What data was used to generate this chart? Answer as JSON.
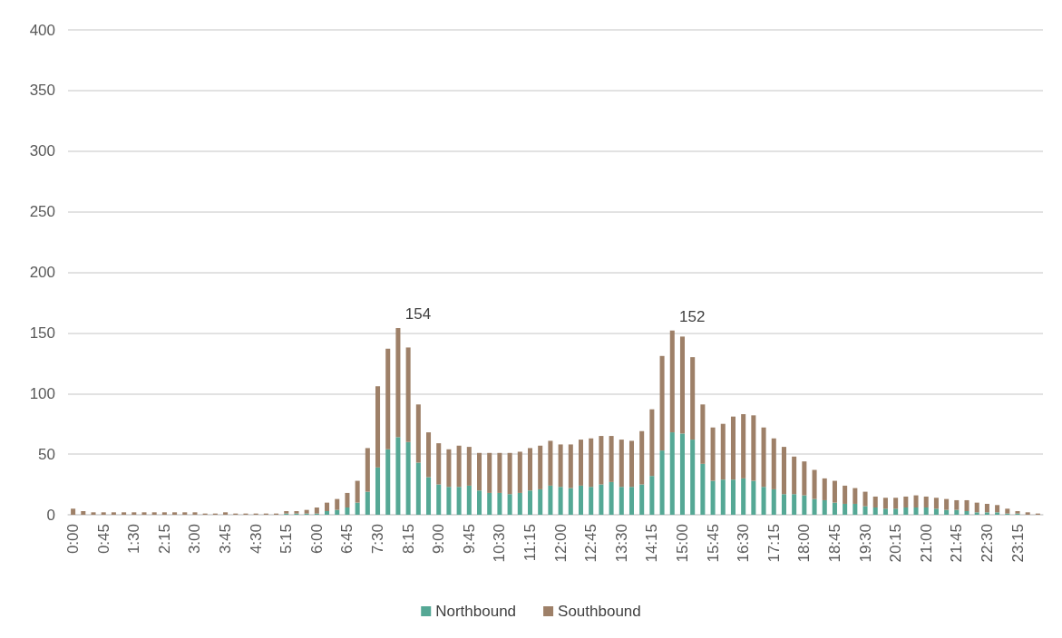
{
  "chart_data": {
    "type": "bar",
    "stacked": true,
    "categories": [
      "0:00",
      null,
      null,
      "0:45",
      null,
      null,
      "1:30",
      null,
      null,
      "2:15",
      null,
      null,
      "3:00",
      null,
      null,
      "3:45",
      null,
      null,
      "4:30",
      null,
      null,
      "5:15",
      null,
      null,
      "6:00",
      null,
      null,
      "6:45",
      null,
      null,
      "7:30",
      null,
      null,
      "8:15",
      null,
      null,
      "9:00",
      null,
      null,
      "9:45",
      null,
      null,
      "10:30",
      null,
      null,
      "11:15",
      null,
      null,
      "12:00",
      null,
      null,
      "12:45",
      null,
      null,
      "13:30",
      null,
      null,
      "14:15",
      null,
      null,
      "15:00",
      null,
      null,
      "15:45",
      null,
      null,
      "16:30",
      null,
      null,
      "17:15",
      null,
      null,
      "18:00",
      null,
      null,
      "18:45",
      null,
      null,
      "19:30",
      null,
      null,
      "20:15",
      null,
      null,
      "21:00",
      null,
      null,
      "21:45",
      null,
      null,
      "22:30",
      null,
      null,
      "23:15",
      null,
      null
    ],
    "series": [
      {
        "name": "Northbound",
        "color": "#55a895",
        "values": [
          0,
          0,
          0,
          0,
          0,
          0,
          0,
          0,
          0,
          0,
          0,
          0,
          0,
          0,
          0,
          0,
          0,
          0,
          0,
          0,
          0,
          1,
          1,
          1,
          1,
          3,
          4,
          6,
          10,
          19,
          39,
          54,
          64,
          60,
          43,
          31,
          25,
          23,
          23,
          24,
          20,
          18,
          18,
          17,
          18,
          20,
          21,
          24,
          23,
          22,
          24,
          23,
          25,
          27,
          23,
          23,
          25,
          32,
          53,
          68,
          67,
          62,
          42,
          28,
          29,
          29,
          30,
          28,
          23,
          21,
          17,
          17,
          16,
          13,
          12,
          10,
          9,
          9,
          7,
          6,
          5,
          5,
          6,
          6,
          6,
          5,
          4,
          4,
          3,
          2,
          2,
          2,
          1,
          1,
          0,
          0
        ]
      },
      {
        "name": "Southbound",
        "color": "#9e8068",
        "values": [
          5,
          3,
          2,
          2,
          2,
          2,
          2,
          2,
          2,
          2,
          2,
          2,
          2,
          1,
          1,
          2,
          1,
          1,
          1,
          1,
          1,
          2,
          2,
          3,
          5,
          7,
          9,
          12,
          18,
          36,
          67,
          83,
          90,
          78,
          48,
          37,
          34,
          31,
          34,
          32,
          31,
          33,
          33,
          34,
          34,
          35,
          36,
          37,
          35,
          36,
          38,
          40,
          40,
          38,
          39,
          38,
          44,
          55,
          78,
          84,
          80,
          68,
          49,
          44,
          46,
          52,
          53,
          54,
          49,
          42,
          39,
          31,
          28,
          24,
          18,
          18,
          15,
          13,
          12,
          9,
          9,
          9,
          9,
          10,
          9,
          9,
          9,
          8,
          9,
          8,
          7,
          6,
          4,
          2,
          2,
          1
        ]
      }
    ],
    "ylim": [
      0,
      400
    ],
    "yticks": [
      0,
      50,
      100,
      150,
      200,
      250,
      300,
      350,
      400
    ],
    "grid": "y",
    "legend": "bottom",
    "totals": [
      null,
      null,
      null,
      null,
      null,
      null,
      null,
      null,
      null,
      null,
      null,
      null,
      null,
      null,
      null,
      null,
      null,
      null,
      null,
      null,
      null,
      null,
      null,
      null,
      null,
      null,
      null,
      null,
      null,
      null,
      null,
      null,
      "154",
      null,
      null,
      null,
      null,
      null,
      null,
      null,
      null,
      null,
      null,
      null,
      null,
      null,
      null,
      null,
      null,
      null,
      null,
      null,
      null,
      null,
      null,
      null,
      null,
      null,
      null,
      "152",
      null,
      null,
      null,
      null,
      null,
      null,
      null,
      null,
      null,
      null,
      null,
      null,
      null,
      null,
      null,
      null,
      null,
      null,
      null,
      null,
      null,
      null,
      null,
      null,
      null,
      null,
      null,
      null,
      null,
      null,
      null,
      null,
      null,
      null,
      null,
      null
    ]
  }
}
